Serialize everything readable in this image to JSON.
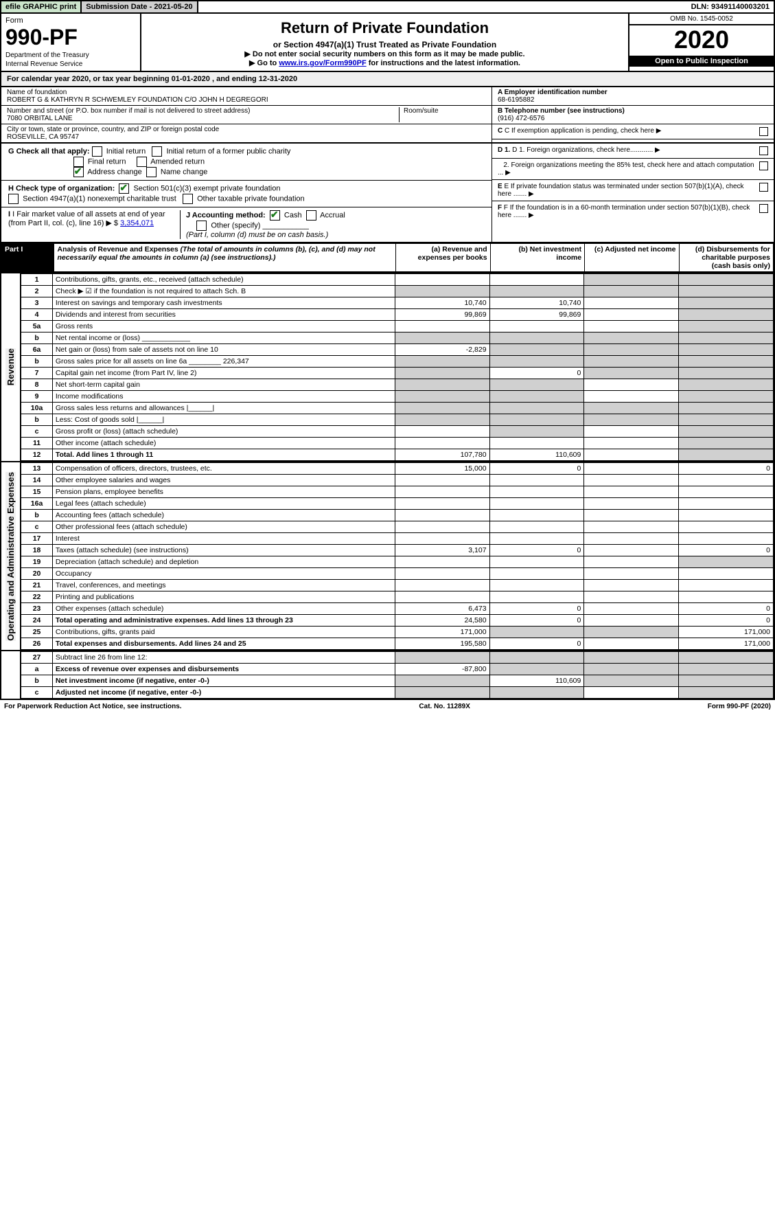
{
  "topbar": {
    "efile": "efile GRAPHIC print",
    "submission": "Submission Date - 2021-05-20",
    "dln": "DLN: 93491140003201"
  },
  "header": {
    "form_word": "Form",
    "form_no": "990-PF",
    "dept": "Department of the Treasury",
    "irs": "Internal Revenue Service",
    "title": "Return of Private Foundation",
    "subtitle": "or Section 4947(a)(1) Trust Treated as Private Foundation",
    "note1": "▶ Do not enter social security numbers on this form as it may be made public.",
    "note2_pre": "▶ Go to ",
    "note2_link": "www.irs.gov/Form990PF",
    "note2_post": " for instructions and the latest information.",
    "omb": "OMB No. 1545-0052",
    "year": "2020",
    "open": "Open to Public Inspection"
  },
  "cal": "For calendar year 2020, or tax year beginning 01-01-2020            , and ending 12-31-2020",
  "name_lbl": "Name of foundation",
  "name_val": "ROBERT G & KATHRYN R SCHWEMLEY FOUNDATION C/O JOHN H DEGREGORI",
  "addr_lbl": "Number and street (or P.O. box number if mail is not delivered to street address)",
  "room_lbl": "Room/suite",
  "addr_val": "7080 ORBITAL LANE",
  "city_lbl": "City or town, state or province, country, and ZIP or foreign postal code",
  "city_val": "ROSEVILLE, CA  95747",
  "a_lbl": "A Employer identification number",
  "a_val": "68-6195882",
  "b_lbl": "B Telephone number (see instructions)",
  "b_val": "(916) 472-6576",
  "c_lbl": "C If exemption application is pending, check here",
  "d1_lbl": "D 1. Foreign organizations, check here............",
  "d2_lbl": "2. Foreign organizations meeting the 85% test, check here and attach computation ...",
  "e_lbl": "E  If private foundation status was terminated under section 507(b)(1)(A), check here .......",
  "f_lbl": "F  If the foundation is in a 60-month termination under section 507(b)(1)(B), check here .......",
  "g_lbl": "G Check all that apply:",
  "g_opts": [
    "Initial return",
    "Initial return of a former public charity",
    "Final return",
    "Amended return",
    "Address change",
    "Name change"
  ],
  "h_lbl": "H Check type of organization:",
  "h_opts": [
    "Section 501(c)(3) exempt private foundation",
    "Section 4947(a)(1) nonexempt charitable trust",
    "Other taxable private foundation"
  ],
  "i_lbl": "I Fair market value of all assets at end of year (from Part II, col. (c), line 16) ▶ $",
  "i_val": "3,354,071",
  "j_lbl": "J Accounting method:",
  "j_opts": [
    "Cash",
    "Accrual",
    "Other (specify)"
  ],
  "j_note": "(Part I, column (d) must be on cash basis.)",
  "part1": "Part I",
  "analysis_title": "Analysis of Revenue and Expenses",
  "analysis_sub": " (The total of amounts in columns (b), (c), and (d) may not necessarily equal the amounts in column (a) (see instructions).)",
  "cols": {
    "a": "(a)  Revenue and expenses per books",
    "b": "(b)  Net investment income",
    "c": "(c)  Adjusted net income",
    "d": "(d)  Disbursements for charitable purposes (cash basis only)"
  },
  "sections": {
    "revenue": "Revenue",
    "opex": "Operating and Administrative Expenses"
  },
  "rows": [
    {
      "n": "1",
      "d": "Contributions, gifts, grants, etc., received (attach schedule)",
      "a": "",
      "b": "",
      "c": "s",
      "ds": "s"
    },
    {
      "n": "2",
      "d": "Check ▶ ☑ if the foundation is not required to attach Sch. B",
      "a": "s",
      "b": "s",
      "c": "s",
      "ds": "s",
      "dshade_all": true
    },
    {
      "n": "3",
      "d": "Interest on savings and temporary cash investments",
      "a": "10,740",
      "b": "10,740",
      "c": "",
      "ds": "s"
    },
    {
      "n": "4",
      "d": "Dividends and interest from securities",
      "a": "99,869",
      "b": "99,869",
      "c": "",
      "ds": "s"
    },
    {
      "n": "5a",
      "d": "Gross rents",
      "a": "",
      "b": "",
      "c": "",
      "ds": "s"
    },
    {
      "n": "b",
      "d": "Net rental income or (loss) ____________",
      "a": "s",
      "b": "s",
      "c": "s",
      "ds": "s",
      "dshade_all": true
    },
    {
      "n": "6a",
      "d": "Net gain or (loss) from sale of assets not on line 10",
      "a": "-2,829",
      "b": "s",
      "c": "s",
      "ds": "s"
    },
    {
      "n": "b",
      "d": "Gross sales price for all assets on line 6a ________ 226,347",
      "a": "s",
      "b": "s",
      "c": "s",
      "ds": "s",
      "dshade_all": true
    },
    {
      "n": "7",
      "d": "Capital gain net income (from Part IV, line 2)",
      "a": "s",
      "b": "0",
      "c": "s",
      "ds": "s"
    },
    {
      "n": "8",
      "d": "Net short-term capital gain",
      "a": "s",
      "b": "s",
      "c": "",
      "ds": "s"
    },
    {
      "n": "9",
      "d": "Income modifications",
      "a": "s",
      "b": "s",
      "c": "",
      "ds": "s"
    },
    {
      "n": "10a",
      "d": "Gross sales less returns and allowances  |______|",
      "a": "s",
      "b": "s",
      "c": "s",
      "ds": "s",
      "dshade_all": true
    },
    {
      "n": "b",
      "d": "Less: Cost of goods sold      |______|",
      "a": "s",
      "b": "s",
      "c": "s",
      "ds": "s",
      "dshade_all": true
    },
    {
      "n": "c",
      "d": "Gross profit or (loss) (attach schedule)",
      "a": "",
      "b": "s",
      "c": "",
      "ds": "s"
    },
    {
      "n": "11",
      "d": "Other income (attach schedule)",
      "a": "",
      "b": "",
      "c": "",
      "ds": "s"
    },
    {
      "n": "12",
      "d": "Total. Add lines 1 through 11",
      "a": "107,780",
      "b": "110,609",
      "c": "",
      "ds": "s",
      "bold": true
    }
  ],
  "exp_rows": [
    {
      "n": "13",
      "d": "Compensation of officers, directors, trustees, etc.",
      "a": "15,000",
      "b": "0",
      "c": "",
      "ds": "0"
    },
    {
      "n": "14",
      "d": "Other employee salaries and wages",
      "a": "",
      "b": "",
      "c": "",
      "ds": ""
    },
    {
      "n": "15",
      "d": "Pension plans, employee benefits",
      "a": "",
      "b": "",
      "c": "",
      "ds": ""
    },
    {
      "n": "16a",
      "d": "Legal fees (attach schedule)",
      "a": "",
      "b": "",
      "c": "",
      "ds": ""
    },
    {
      "n": "b",
      "d": "Accounting fees (attach schedule)",
      "a": "",
      "b": "",
      "c": "",
      "ds": ""
    },
    {
      "n": "c",
      "d": "Other professional fees (attach schedule)",
      "a": "",
      "b": "",
      "c": "",
      "ds": ""
    },
    {
      "n": "17",
      "d": "Interest",
      "a": "",
      "b": "",
      "c": "",
      "ds": ""
    },
    {
      "n": "18",
      "d": "Taxes (attach schedule) (see instructions)",
      "a": "3,107",
      "b": "0",
      "c": "",
      "ds": "0"
    },
    {
      "n": "19",
      "d": "Depreciation (attach schedule) and depletion",
      "a": "",
      "b": "",
      "c": "",
      "ds": "s"
    },
    {
      "n": "20",
      "d": "Occupancy",
      "a": "",
      "b": "",
      "c": "",
      "ds": ""
    },
    {
      "n": "21",
      "d": "Travel, conferences, and meetings",
      "a": "",
      "b": "",
      "c": "",
      "ds": ""
    },
    {
      "n": "22",
      "d": "Printing and publications",
      "a": "",
      "b": "",
      "c": "",
      "ds": ""
    },
    {
      "n": "23",
      "d": "Other expenses (attach schedule)",
      "a": "6,473",
      "b": "0",
      "c": "",
      "ds": "0"
    },
    {
      "n": "24",
      "d": "Total operating and administrative expenses. Add lines 13 through 23",
      "a": "24,580",
      "b": "0",
      "c": "",
      "ds": "0",
      "bold": true
    },
    {
      "n": "25",
      "d": "Contributions, gifts, grants paid",
      "a": "171,000",
      "b": "s",
      "c": "s",
      "ds": "171,000"
    },
    {
      "n": "26",
      "d": "Total expenses and disbursements. Add lines 24 and 25",
      "a": "195,580",
      "b": "0",
      "c": "",
      "ds": "171,000",
      "bold": true
    }
  ],
  "net_rows": [
    {
      "n": "27",
      "d": "Subtract line 26 from line 12:",
      "a": "s",
      "b": "s",
      "c": "s",
      "ds": "s",
      "dshade_all": true
    },
    {
      "n": "a",
      "d": "Excess of revenue over expenses and disbursements",
      "a": "-87,800",
      "b": "s",
      "c": "s",
      "ds": "s",
      "bold": true
    },
    {
      "n": "b",
      "d": "Net investment income (if negative, enter -0-)",
      "a": "s",
      "b": "110,609",
      "c": "s",
      "ds": "s",
      "bold": true
    },
    {
      "n": "c",
      "d": "Adjusted net income (if negative, enter -0-)",
      "a": "s",
      "b": "s",
      "c": "",
      "ds": "s",
      "bold": true
    }
  ],
  "footer": {
    "left": "For Paperwork Reduction Act Notice, see instructions.",
    "mid": "Cat. No. 11289X",
    "right": "Form 990-PF (2020)"
  }
}
